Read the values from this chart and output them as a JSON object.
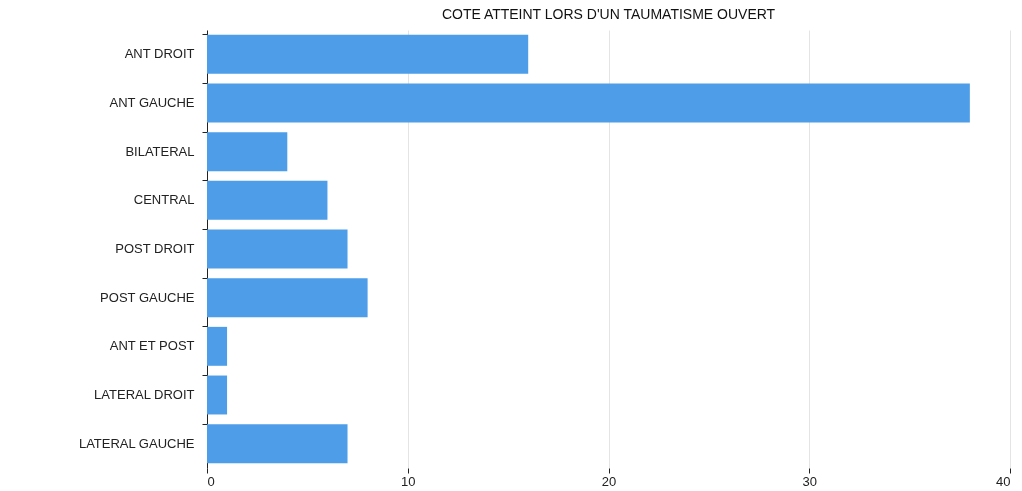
{
  "chart_data": {
    "type": "bar",
    "orientation": "horizontal",
    "title": "COTE ATTEINT LORS D'UN TAUMATISME OUVERT",
    "categories": [
      "ANT DROIT",
      "ANT GAUCHE",
      "BILATERAL",
      "CENTRAL",
      "POST DROIT",
      "POST GAUCHE",
      "ANT ET POST",
      "LATERAL DROIT",
      "LATERAL GAUCHE"
    ],
    "values": [
      16,
      38,
      4,
      6,
      7,
      8,
      1,
      1,
      7
    ],
    "color": "#4d9de8",
    "xlim": [
      0,
      40
    ],
    "xticks": [
      0,
      10,
      20,
      30,
      40
    ],
    "grid": "x"
  }
}
